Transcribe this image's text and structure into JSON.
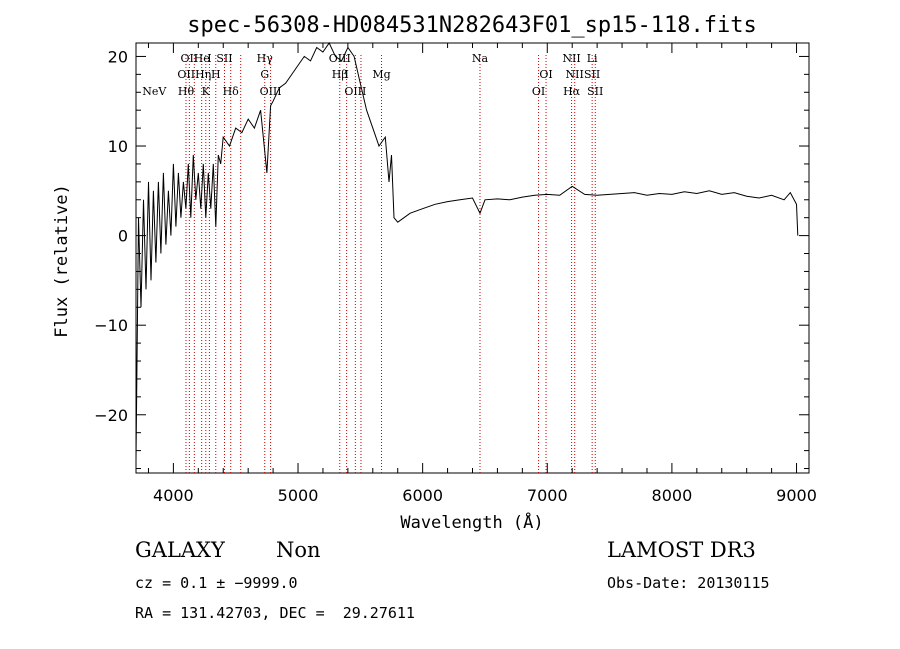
{
  "chart_data": {
    "type": "line",
    "title": "spec-56308-HD084531N282643F01_sp15-118.fits",
    "xlabel": "Wavelength (Å)",
    "ylabel": "Flux (relative)",
    "xlim": [
      3700,
      9100
    ],
    "ylim": [
      -26.5,
      21.5
    ],
    "xticks": [
      4000,
      5000,
      6000,
      7000,
      8000,
      9000
    ],
    "yticks": [
      -20,
      -10,
      0,
      10,
      20
    ],
    "grid": false,
    "spectrum": [
      [
        3700,
        -25.0
      ],
      [
        3720,
        2.0
      ],
      [
        3740,
        -8.0
      ],
      [
        3760,
        4.0
      ],
      [
        3780,
        -6.0
      ],
      [
        3800,
        6.0
      ],
      [
        3820,
        -5.0
      ],
      [
        3840,
        5.0
      ],
      [
        3860,
        -3.0
      ],
      [
        3880,
        6.0
      ],
      [
        3900,
        -2.0
      ],
      [
        3920,
        7.0
      ],
      [
        3940,
        -1.0
      ],
      [
        3960,
        5.0
      ],
      [
        3980,
        0.0
      ],
      [
        4000,
        8.0
      ],
      [
        4020,
        1.0
      ],
      [
        4040,
        7.0
      ],
      [
        4060,
        2.0
      ],
      [
        4080,
        6.0
      ],
      [
        4100,
        3.0
      ],
      [
        4120,
        8.0
      ],
      [
        4140,
        2.0
      ],
      [
        4160,
        9.0
      ],
      [
        4180,
        4.0
      ],
      [
        4200,
        7.0
      ],
      [
        4220,
        3.0
      ],
      [
        4240,
        8.0
      ],
      [
        4260,
        2.0
      ],
      [
        4280,
        7.0
      ],
      [
        4300,
        3.0
      ],
      [
        4320,
        8.0
      ],
      [
        4340,
        1.0
      ],
      [
        4360,
        9.0
      ],
      [
        4380,
        8.0
      ],
      [
        4400,
        11.0
      ],
      [
        4450,
        10.0
      ],
      [
        4500,
        12.0
      ],
      [
        4550,
        11.5
      ],
      [
        4600,
        13.0
      ],
      [
        4650,
        12.0
      ],
      [
        4700,
        14.0
      ],
      [
        4750,
        7.0
      ],
      [
        4780,
        14.5
      ],
      [
        4800,
        15.0
      ],
      [
        4850,
        16.5
      ],
      [
        4900,
        17.0
      ],
      [
        4950,
        18.0
      ],
      [
        5000,
        19.0
      ],
      [
        5050,
        20.0
      ],
      [
        5100,
        19.5
      ],
      [
        5150,
        21.0
      ],
      [
        5200,
        20.5
      ],
      [
        5250,
        21.5
      ],
      [
        5300,
        20.0
      ],
      [
        5350,
        19.5
      ],
      [
        5400,
        21.0
      ],
      [
        5450,
        20.0
      ],
      [
        5500,
        17.0
      ],
      [
        5550,
        14.0
      ],
      [
        5600,
        12.0
      ],
      [
        5650,
        10.0
      ],
      [
        5700,
        11.0
      ],
      [
        5730,
        6.0
      ],
      [
        5750,
        9.0
      ],
      [
        5770,
        2.0
      ],
      [
        5800,
        1.5
      ],
      [
        5850,
        2.0
      ],
      [
        5900,
        2.5
      ],
      [
        6000,
        3.0
      ],
      [
        6100,
        3.5
      ],
      [
        6200,
        3.8
      ],
      [
        6300,
        4.0
      ],
      [
        6400,
        4.2
      ],
      [
        6460,
        2.5
      ],
      [
        6500,
        4.0
      ],
      [
        6600,
        4.1
      ],
      [
        6700,
        4.0
      ],
      [
        6800,
        4.3
      ],
      [
        6900,
        4.5
      ],
      [
        7000,
        4.6
      ],
      [
        7100,
        4.5
      ],
      [
        7200,
        5.5
      ],
      [
        7300,
        4.6
      ],
      [
        7400,
        4.5
      ],
      [
        7500,
        4.6
      ],
      [
        7600,
        4.7
      ],
      [
        7700,
        4.8
      ],
      [
        7800,
        4.5
      ],
      [
        7900,
        4.7
      ],
      [
        8000,
        4.6
      ],
      [
        8100,
        4.9
      ],
      [
        8200,
        4.7
      ],
      [
        8300,
        5.0
      ],
      [
        8400,
        4.6
      ],
      [
        8500,
        4.8
      ],
      [
        8600,
        4.4
      ],
      [
        8700,
        4.2
      ],
      [
        8800,
        4.5
      ],
      [
        8900,
        4.0
      ],
      [
        8950,
        4.8
      ],
      [
        9000,
        3.5
      ],
      [
        9010,
        0.0
      ]
    ],
    "line_color": "#000000",
    "marker_color": "#cc0000",
    "marker_lines": [
      {
        "wl": 4101,
        "labels": [
          {
            "text": "Hθ",
            "row": 3
          }
        ]
      },
      {
        "wl": 4128,
        "labels": [
          {
            "text": "OII",
            "row": 1
          }
        ]
      },
      {
        "wl": 4168,
        "labels": [
          {
            "text": "OIIHη",
            "row": 2
          }
        ]
      },
      {
        "wl": 4227,
        "labels": [
          {
            "text": "He",
            "row": 1
          }
        ]
      },
      {
        "wl": 4260,
        "labels": [
          {
            "text": "K",
            "row": 3
          }
        ]
      },
      {
        "wl": 4289,
        "labels": [
          {
            "text": "I",
            "row": 1
          }
        ]
      },
      {
        "wl": 4340,
        "labels": [
          {
            "text": "H",
            "row": 2
          }
        ]
      },
      {
        "wl": 4410,
        "labels": [
          {
            "text": "SII",
            "row": 1
          }
        ]
      },
      {
        "wl": 4460,
        "labels": [
          {
            "text": "Hδ",
            "row": 3
          }
        ]
      },
      {
        "wl": 4540,
        "labels": [
          {
            "text": "NeV",
            "row": 3,
            "x_wl": 3750
          }
        ]
      },
      {
        "wl": 4733,
        "labels": [
          {
            "text": "Hγ",
            "row": 1
          },
          {
            "text": "G",
            "row": 2
          }
        ]
      },
      {
        "wl": 4780,
        "labels": [
          {
            "text": "OIII",
            "row": 3
          }
        ]
      },
      {
        "wl": 5335,
        "labels": [
          {
            "text": "OIII",
            "row": 1
          },
          {
            "text": "Hβ",
            "row": 2
          }
        ]
      },
      {
        "wl": 5390,
        "labels": [
          {
            "text": "I",
            "row": 2
          }
        ]
      },
      {
        "wl": 5460,
        "labels": [
          {
            "text": "OIII",
            "row": 3
          }
        ]
      },
      {
        "wl": 5505,
        "labels": [
          {
            "text": "",
            "row": 1
          }
        ]
      },
      {
        "wl": 5670,
        "labels": [
          {
            "text": "Mg",
            "row": 2
          }
        ]
      },
      {
        "wl": 6460,
        "labels": [
          {
            "text": "Na",
            "row": 1
          }
        ]
      },
      {
        "wl": 6930,
        "labels": [
          {
            "text": "OI",
            "row": 3
          }
        ]
      },
      {
        "wl": 6990,
        "labels": [
          {
            "text": "OI",
            "row": 2
          }
        ]
      },
      {
        "wl": 7195,
        "labels": [
          {
            "text": "NII",
            "row": 1
          },
          {
            "text": "Hα",
            "row": 3
          }
        ]
      },
      {
        "wl": 7220,
        "labels": [
          {
            "text": "NII",
            "row": 2
          }
        ]
      },
      {
        "wl": 7360,
        "labels": [
          {
            "text": "Li",
            "row": 1
          },
          {
            "text": "SII",
            "row": 2
          }
        ]
      },
      {
        "wl": 7385,
        "labels": [
          {
            "text": "SII",
            "row": 3
          }
        ]
      }
    ]
  },
  "info": {
    "class": "GALAXY",
    "subclass": "Non",
    "survey": "LAMOST DR3",
    "cz": "cz = 0.1 ± −9999.0",
    "obs_date": "Obs-Date: 20130115",
    "coords": "RA = 131.42703, DEC =  29.27611"
  }
}
